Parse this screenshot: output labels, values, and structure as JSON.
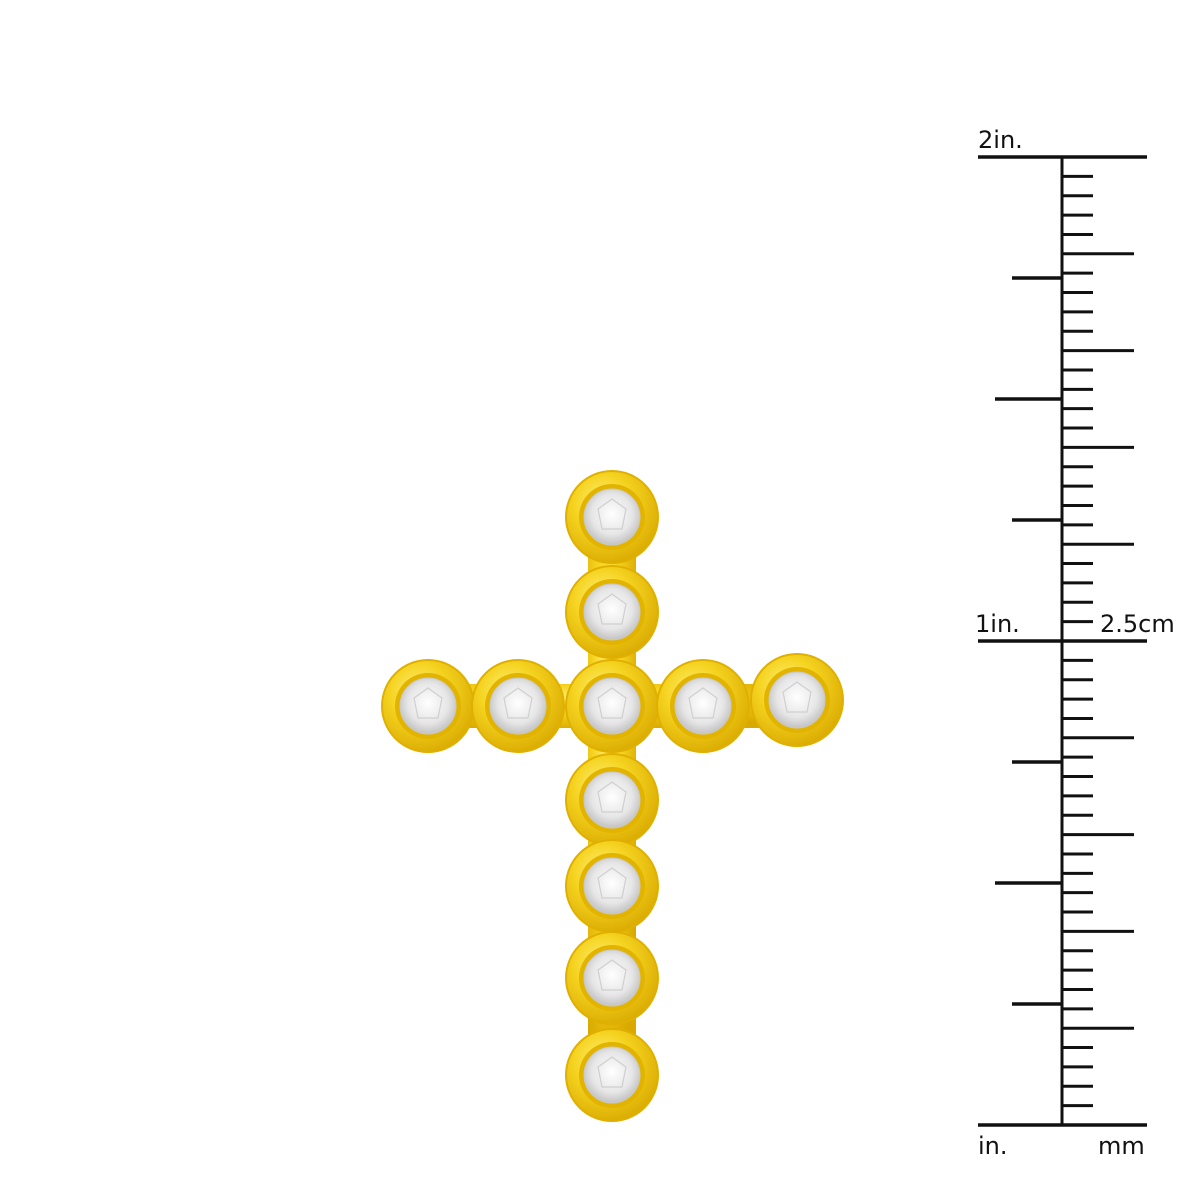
{
  "product": {
    "stone_count": 11,
    "colors": {
      "gold": "#f5d320",
      "gold_dark": "#d9a900",
      "gold_light": "#fff07a",
      "stone": "#f2f2f2",
      "ruler": "#111111"
    }
  },
  "ruler": {
    "top_label": "2in.",
    "mid_label": "1in.",
    "cm_label": "2.5cm",
    "unit_left": "in.",
    "unit_right": "mm"
  }
}
